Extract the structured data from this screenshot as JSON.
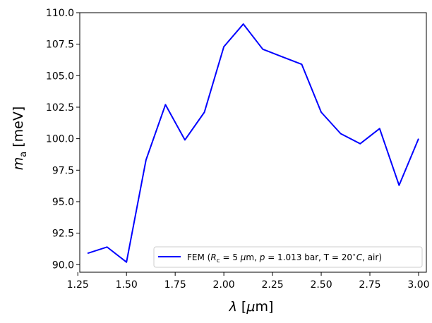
{
  "chart_data": {
    "type": "line",
    "xlabel": "λ [μm]",
    "ylabel": "m_a [meV]",
    "xlim": [
      1.26,
      3.04
    ],
    "ylim": [
      89.4,
      110.0
    ],
    "x_ticks": [
      1.25,
      1.5,
      1.75,
      2.0,
      2.25,
      2.5,
      2.75,
      3.0
    ],
    "x_tick_labels": [
      "1.25",
      "1.50",
      "1.75",
      "2.00",
      "2.25",
      "2.50",
      "2.75",
      "3.00"
    ],
    "y_ticks": [
      90.0,
      92.5,
      95.0,
      97.5,
      100.0,
      102.5,
      105.0,
      107.5,
      110.0
    ],
    "y_tick_labels": [
      "90.0",
      "92.5",
      "95.0",
      "97.5",
      "100.0",
      "102.5",
      "105.0",
      "107.5",
      "110.0"
    ],
    "grid": false,
    "legend_position": "lower-right",
    "series": [
      {
        "name": "FEM (R_c = 5 μm, p = 1.013 bar, T = 20°C, air)",
        "color": "#0000ff",
        "x": [
          1.3,
          1.4,
          1.5,
          1.6,
          1.7,
          1.8,
          1.9,
          2.0,
          2.1,
          2.2,
          2.3,
          2.4,
          2.5,
          2.6,
          2.7,
          2.8,
          2.9,
          3.0
        ],
        "y": [
          90.9,
          91.4,
          90.2,
          98.3,
          102.7,
          99.9,
          102.1,
          107.3,
          109.1,
          107.1,
          106.5,
          105.9,
          102.1,
          100.4,
          99.6,
          100.8,
          96.3,
          100.0
        ]
      }
    ]
  }
}
